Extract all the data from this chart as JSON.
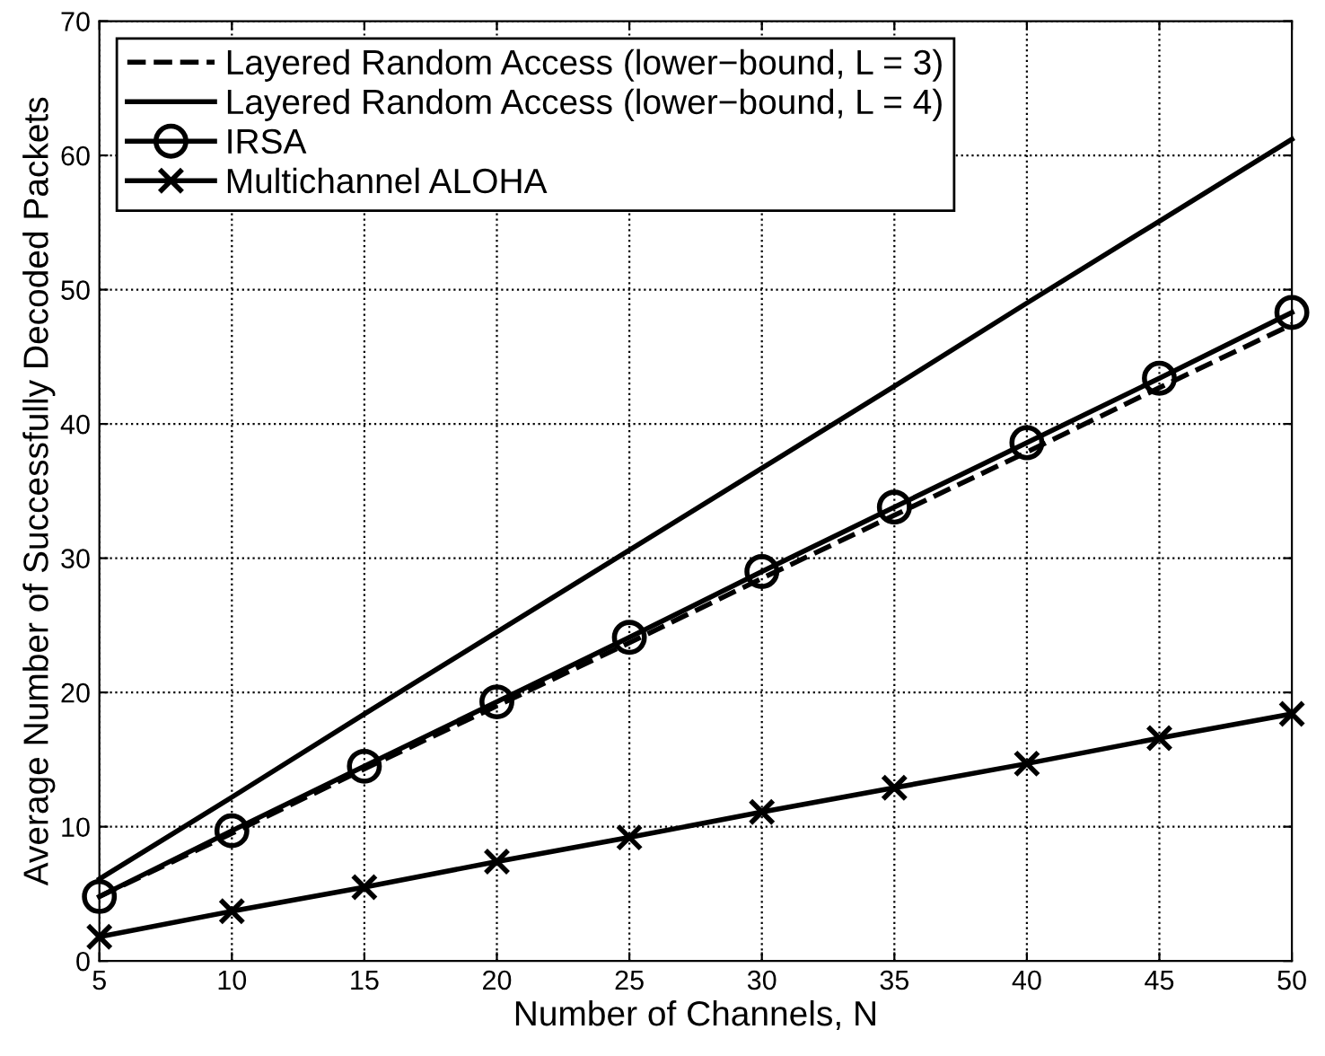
{
  "chart_data": {
    "type": "line",
    "xlabel": "Number of Channels, N",
    "ylabel": "Average Number of Successfully Decoded Packets",
    "x": [
      5,
      10,
      15,
      20,
      25,
      30,
      35,
      40,
      45,
      50
    ],
    "series": [
      {
        "name": "Layered Random Access (lower−bound, L = 3)",
        "color": "#000000",
        "line_style": "dashed",
        "marker": "none",
        "values": [
          4.8,
          9.5,
          14.3,
          19.0,
          23.7,
          28.5,
          33.2,
          37.9,
          42.7,
          47.4
        ]
      },
      {
        "name": "Layered Random Access (lower−bound, L = 4)",
        "color": "#000000",
        "line_style": "solid",
        "marker": "none",
        "values": [
          6.1,
          12.2,
          18.4,
          24.5,
          30.6,
          36.7,
          42.8,
          49.0,
          55.1,
          61.2
        ]
      },
      {
        "name": "IRSA",
        "color": "#000000",
        "line_style": "solid",
        "marker": "circle",
        "values": [
          4.8,
          9.7,
          14.5,
          19.3,
          24.1,
          29.0,
          33.8,
          38.6,
          43.4,
          48.3
        ]
      },
      {
        "name": "Multichannel ALOHA",
        "color": "#000000",
        "line_style": "solid",
        "marker": "cross",
        "values": [
          1.8,
          3.7,
          5.5,
          7.4,
          9.2,
          11.1,
          12.9,
          14.7,
          16.6,
          18.4
        ]
      }
    ],
    "xlim": [
      5,
      50
    ],
    "xticks": [
      5,
      10,
      15,
      20,
      25,
      30,
      35,
      40,
      45,
      50
    ],
    "ylim": [
      0,
      70
    ],
    "yticks": [
      0,
      10,
      20,
      30,
      40,
      50,
      60,
      70
    ],
    "grid": true,
    "legend": "top left"
  }
}
